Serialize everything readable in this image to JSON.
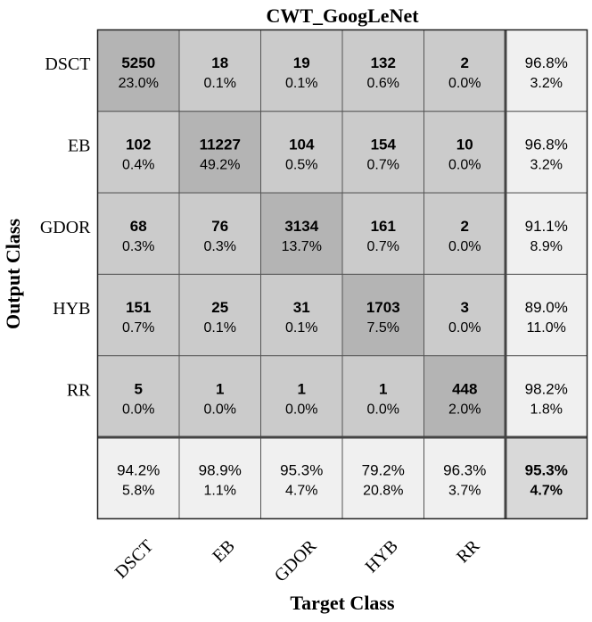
{
  "chart_data": {
    "type": "heatmap",
    "title": "CWT_GoogLeNet",
    "xlabel": "Target Class",
    "ylabel": "Output Class",
    "classes": [
      "DSCT",
      "EB",
      "GDOR",
      "HYB",
      "RR"
    ],
    "counts": [
      [
        5250,
        18,
        19,
        132,
        2
      ],
      [
        102,
        11227,
        104,
        154,
        10
      ],
      [
        68,
        76,
        3134,
        161,
        2
      ],
      [
        151,
        25,
        31,
        1703,
        3
      ],
      [
        5,
        1,
        1,
        1,
        448
      ]
    ],
    "percents": [
      [
        "23.0%",
        "0.1%",
        "0.1%",
        "0.6%",
        "0.0%"
      ],
      [
        "0.4%",
        "49.2%",
        "0.5%",
        "0.7%",
        "0.0%"
      ],
      [
        "0.3%",
        "0.3%",
        "13.7%",
        "0.7%",
        "0.0%"
      ],
      [
        "0.7%",
        "0.1%",
        "0.1%",
        "7.5%",
        "0.0%"
      ],
      [
        "0.0%",
        "0.0%",
        "0.0%",
        "0.0%",
        "2.0%"
      ]
    ],
    "row_summary": [
      [
        "96.8%",
        "3.2%"
      ],
      [
        "96.8%",
        "3.2%"
      ],
      [
        "91.1%",
        "8.9%"
      ],
      [
        "89.0%",
        "11.0%"
      ],
      [
        "98.2%",
        "1.8%"
      ]
    ],
    "col_summary": [
      [
        "94.2%",
        "5.8%"
      ],
      [
        "98.9%",
        "1.1%"
      ],
      [
        "95.3%",
        "4.7%"
      ],
      [
        "79.2%",
        "20.8%"
      ],
      [
        "96.3%",
        "3.7%"
      ]
    ],
    "overall": [
      "95.3%",
      "4.7%"
    ],
    "colors": {
      "diagonal": "#b4b4b4",
      "off_diagonal": "#cbcbcb",
      "summary": "#f0f0f0",
      "overall": "#d9d9d9",
      "grid": "#555555"
    }
  }
}
